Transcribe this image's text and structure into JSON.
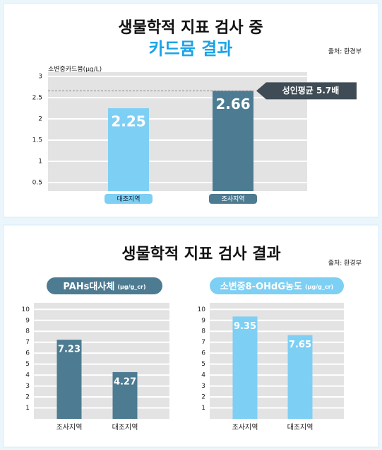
{
  "chart_data": [
    {
      "type": "bar",
      "title": "생물학적 지표 검사 중",
      "subtitle": "카드뮴 결과",
      "source": "출처: 환경부",
      "y_label": "소변중카드뮴(μg/L)",
      "categories": [
        "대조지역",
        "조사지역"
      ],
      "values": [
        2.25,
        2.66
      ],
      "colors": [
        "#7ecff4",
        "#4d7b91"
      ],
      "ylim": [
        0.3,
        3.1
      ],
      "yticks": [
        0.5,
        1,
        1.5,
        2,
        2.5,
        3
      ],
      "grid": true,
      "annotation": "성인평균 5.7배"
    },
    {
      "type": "bar",
      "title": "PAHs대사체",
      "unit": "(μg/g_cr)",
      "categories": [
        "조사지역",
        "대조지역"
      ],
      "values": [
        7.23,
        4.27
      ],
      "colors": [
        "#4d7b91",
        "#4d7b91"
      ],
      "ylim": [
        0,
        10.6
      ],
      "yticks": [
        1,
        2,
        3,
        4,
        5,
        6,
        7,
        8,
        9,
        10
      ],
      "grid": true
    },
    {
      "type": "bar",
      "title": "소변중8-OHdG농도",
      "unit": "(μg/g_cr)",
      "categories": [
        "조사지역",
        "대조지역"
      ],
      "values": [
        9.35,
        7.65
      ],
      "colors": [
        "#7ecff4",
        "#7ecff4"
      ],
      "ylim": [
        0,
        10.6
      ],
      "yticks": [
        1,
        2,
        3,
        4,
        5,
        6,
        7,
        8,
        9,
        10
      ],
      "grid": true
    }
  ],
  "bottom_panel": {
    "title": "생물학적 지표 검사 결과",
    "source": "출처: 환경부"
  }
}
